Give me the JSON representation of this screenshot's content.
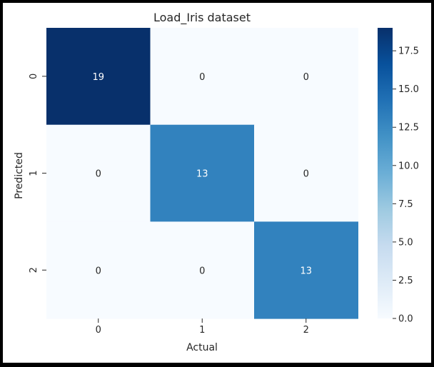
{
  "chart_data": {
    "type": "heatmap",
    "title": "Load_Iris dataset",
    "xlabel": "Actual",
    "ylabel": "Predicted",
    "x_categories": [
      "0",
      "1",
      "2"
    ],
    "y_categories": [
      "0",
      "1",
      "2"
    ],
    "values": [
      [
        19,
        0,
        0
      ],
      [
        0,
        13,
        0
      ],
      [
        0,
        0,
        13
      ]
    ],
    "colormap": "Blues",
    "vmin": 0,
    "vmax": 19,
    "colorbar_ticks": [
      "0.0",
      "2.5",
      "5.0",
      "7.5",
      "10.0",
      "12.5",
      "15.0",
      "17.5"
    ],
    "colors": {
      "low": "#f7fbff",
      "mid": "#3787c0",
      "high": "#08306b",
      "text_dark": "#262626",
      "text_light": "#ffffff"
    }
  }
}
